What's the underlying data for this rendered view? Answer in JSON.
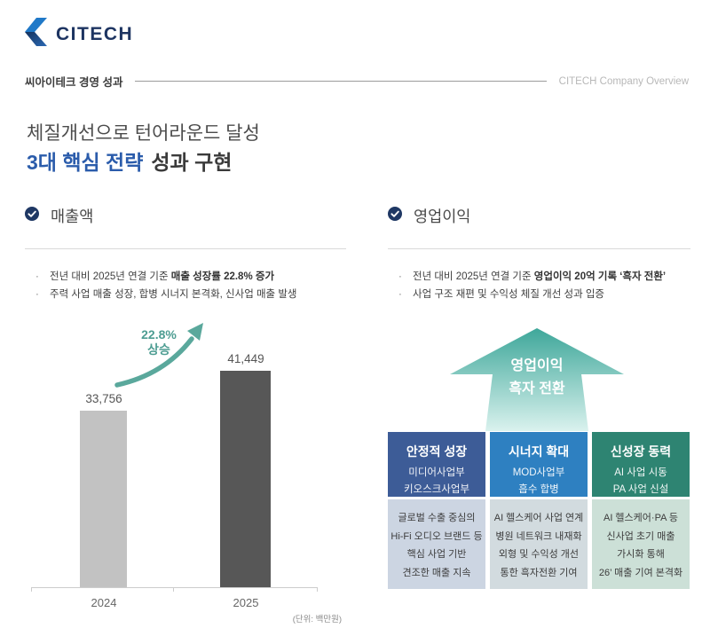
{
  "logo": {
    "text": "CITECH"
  },
  "header": {
    "left": "씨아이테크 경영 성과",
    "right": "CITECH Company Overview"
  },
  "title": {
    "line1": "체질개선으로 턴어라운드 달성",
    "line2_accent": "3대 핵심 전략",
    "line2_rest": "성과 구현"
  },
  "revenue": {
    "heading": "매출액",
    "bullets": [
      {
        "normal": "전년 대비 2025년 연결 기준 ",
        "bold": "매출 성장률 22.8% 증가"
      },
      {
        "normal": "주력 사업 매출 성장, 합병 시너지 본격화, 신사업 매출 발생",
        "bold": ""
      }
    ]
  },
  "profit": {
    "heading": "영업이익",
    "bullets": [
      {
        "normal": "전년 대비 2025년 연결 기준 ",
        "bold": "영업이익 20억 기록 ‘흑자 전환’"
      },
      {
        "normal": "사업 구조 재편 및 수익성 체질 개선 성과 입증",
        "bold": ""
      }
    ],
    "arrow": {
      "line1": "영업이익",
      "line2": "흑자 전환"
    },
    "columns": [
      {
        "title": "안정적 성장",
        "sub1": "미디어사업부",
        "sub2": "키오스크사업부",
        "body": [
          "글로벌 수출 중심의",
          "Hi-Fi 오디오 브랜드 등",
          "핵심 사업 기반",
          "견조한 매출 지속"
        ],
        "header_color": "#3d5c97",
        "body_color": "#ccd5e2"
      },
      {
        "title": "시너지 확대",
        "sub1": "MOD사업부",
        "sub2": "흡수 합병",
        "body": [
          "AI 헬스케어 사업 연계",
          "병원 네트워크 내재화",
          "외형 및 수익성 개선",
          "통한 흑자전환 기여"
        ],
        "header_color": "#2e80c1",
        "body_color": "#d2dbdf"
      },
      {
        "title": "신성장 동력",
        "sub1": "AI 사업 시동",
        "sub2": "PA 사업 신설",
        "body": [
          "AI 헬스케어·PA 등",
          "신사업 초기 매출",
          "가시화 통해",
          "26’ 매출 기여 본격화"
        ],
        "header_color": "#2e8472",
        "body_color": "#cce0d7"
      }
    ]
  },
  "chart_data": {
    "type": "bar",
    "title": "매출액",
    "categories": [
      "2024",
      "2025"
    ],
    "values": [
      33756,
      41449
    ],
    "value_labels": [
      "33,756",
      "41,449"
    ],
    "bar_colors": [
      "#c2c2c2",
      "#575757"
    ],
    "growth_pct": 22.8,
    "annotation": {
      "line1": "22.8%",
      "line2": "상승"
    },
    "unit_note": "(단위: 백만원)",
    "xlabel": "",
    "ylabel": "",
    "ylim": [
      0,
      45000
    ],
    "grid": false,
    "legend": false
  },
  "colors": {
    "accent_blue": "#2b5cab",
    "navy": "#1d3461",
    "teal": "#4d9d92",
    "check_circle": "#1f3864"
  }
}
